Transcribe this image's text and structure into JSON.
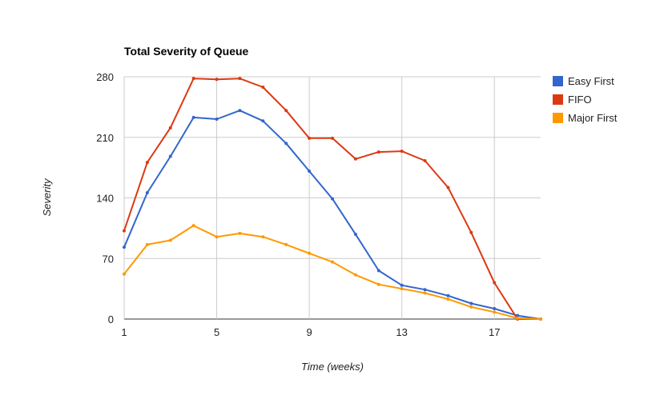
{
  "chart_data": {
    "type": "line",
    "title": "Total Severity of Queue",
    "xlabel": "Time (weeks)",
    "ylabel": "Severity",
    "x": [
      1,
      2,
      3,
      4,
      5,
      6,
      7,
      8,
      9,
      10,
      11,
      12,
      13,
      14,
      15,
      16,
      17,
      18,
      19
    ],
    "xticks": [
      1,
      5,
      9,
      13,
      17
    ],
    "yticks": [
      0,
      70,
      140,
      210,
      280
    ],
    "xlim": [
      1,
      19
    ],
    "ylim": [
      0,
      280
    ],
    "grid": true,
    "legend_position": "right",
    "series": [
      {
        "name": "Easy First",
        "color": "#3366cc",
        "values": [
          83,
          146,
          188,
          233,
          231,
          241,
          229,
          203,
          171,
          139,
          98,
          56,
          39,
          34,
          27,
          18,
          12,
          4,
          0
        ]
      },
      {
        "name": "FIFO",
        "color": "#dc3912",
        "values": [
          102,
          181,
          221,
          278,
          277,
          278,
          268,
          241,
          209,
          209,
          185,
          193,
          194,
          183,
          152,
          100,
          42,
          0,
          0
        ]
      },
      {
        "name": "Major First",
        "color": "#ff9900",
        "values": [
          52,
          86,
          91,
          108,
          95,
          99,
          95,
          86,
          76,
          66,
          51,
          40,
          35,
          30,
          23,
          14,
          8,
          1,
          0
        ]
      }
    ]
  }
}
